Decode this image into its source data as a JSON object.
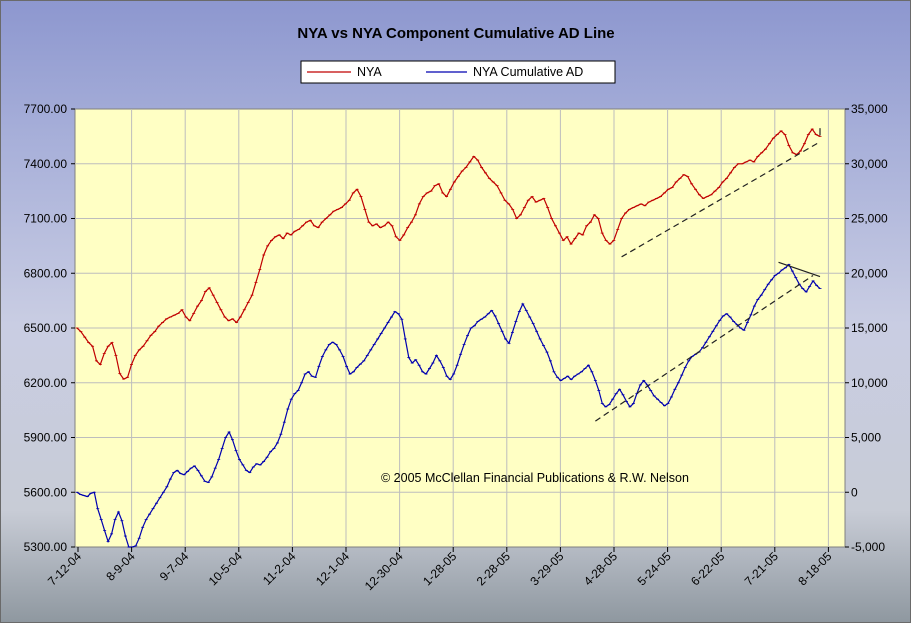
{
  "chart_data": {
    "type": "line",
    "title": "NYA vs NYA Component Cumulative AD Line",
    "copyright": "© 2005 McClellan Financial Publications & R.W. Nelson",
    "x_tick_labels": [
      "7-12-04",
      "8-9-04",
      "9-7-04",
      "10-5-04",
      "11-2-04",
      "12-1-04",
      "12-30-04",
      "1-28-05",
      "2-28-05",
      "3-29-05",
      "4-28-05",
      "5-24-05",
      "6-22-05",
      "7-21-05",
      "8-18-05"
    ],
    "y_left": {
      "ylim": [
        5300,
        7700
      ],
      "tick_labels": [
        "7700.00",
        "7400.00",
        "7100.00",
        "6800.00",
        "6500.00",
        "6200.00",
        "5900.00",
        "5600.00",
        "5300.00"
      ]
    },
    "y_right": {
      "ylim": [
        -5000,
        35000
      ],
      "tick_labels": [
        "35,000",
        "30,000",
        "25,000",
        "20,000",
        "15,000",
        "10,000",
        "5,000",
        "0",
        "-5,000"
      ]
    },
    "legend_position": "top-center",
    "series": [
      {
        "name": "NYA",
        "axis": "left",
        "color": "#c00000",
        "values": [
          6500,
          6480,
          6450,
          6420,
          6400,
          6320,
          6300,
          6360,
          6400,
          6420,
          6350,
          6250,
          6220,
          6230,
          6300,
          6350,
          6380,
          6400,
          6430,
          6460,
          6480,
          6510,
          6530,
          6550,
          6560,
          6570,
          6580,
          6600,
          6560,
          6540,
          6580,
          6620,
          6650,
          6700,
          6720,
          6680,
          6640,
          6600,
          6560,
          6540,
          6550,
          6530,
          6560,
          6600,
          6640,
          6680,
          6750,
          6820,
          6900,
          6950,
          6980,
          7000,
          7010,
          6990,
          7020,
          7010,
          7030,
          7040,
          7060,
          7080,
          7090,
          7060,
          7050,
          7080,
          7100,
          7120,
          7140,
          7150,
          7160,
          7180,
          7200,
          7240,
          7260,
          7220,
          7150,
          7080,
          7060,
          7070,
          7050,
          7060,
          7080,
          7060,
          7000,
          6980,
          7010,
          7050,
          7080,
          7120,
          7180,
          7220,
          7240,
          7250,
          7280,
          7290,
          7240,
          7220,
          7260,
          7300,
          7330,
          7360,
          7380,
          7410,
          7440,
          7420,
          7380,
          7350,
          7320,
          7300,
          7280,
          7240,
          7200,
          7180,
          7150,
          7100,
          7120,
          7160,
          7200,
          7220,
          7190,
          7200,
          7210,
          7160,
          7100,
          7060,
          7020,
          6980,
          7000,
          6960,
          6990,
          7020,
          7010,
          7060,
          7080,
          7120,
          7100,
          7020,
          6980,
          6960,
          6980,
          7040,
          7100,
          7130,
          7150,
          7160,
          7170,
          7180,
          7170,
          7190,
          7200,
          7210,
          7220,
          7240,
          7260,
          7270,
          7300,
          7320,
          7340,
          7330,
          7290,
          7260,
          7230,
          7210,
          7220,
          7230,
          7250,
          7270,
          7300,
          7320,
          7350,
          7380,
          7400,
          7400,
          7410,
          7420,
          7410,
          7440,
          7460,
          7480,
          7510,
          7540,
          7560,
          7580,
          7560,
          7500,
          7460,
          7450,
          7470,
          7510,
          7560,
          7590,
          7560,
          7550
        ]
      },
      {
        "name": "NYA Cumulative AD",
        "axis": "right",
        "color": "#0000b0",
        "values": [
          0,
          -200,
          -300,
          -400,
          -100,
          0,
          -1500,
          -2500,
          -3500,
          -4500,
          -3800,
          -2500,
          -1800,
          -2600,
          -4000,
          -5000,
          -5400,
          -4900,
          -4200,
          -3200,
          -2500,
          -2000,
          -1500,
          -1000,
          -500,
          0,
          500,
          1200,
          1800,
          2000,
          1700,
          1600,
          1900,
          2200,
          2400,
          2000,
          1500,
          1000,
          900,
          1400,
          2200,
          3000,
          4000,
          5000,
          5500,
          4800,
          3800,
          3000,
          2500,
          2000,
          1800,
          2300,
          2600,
          2500,
          2800,
          3200,
          3700,
          4000,
          4500,
          5300,
          6400,
          7600,
          8500,
          9000,
          9300,
          10000,
          10800,
          11000,
          10600,
          10500,
          11500,
          12400,
          13000,
          13500,
          13700,
          13500,
          13000,
          12400,
          11500,
          10800,
          11000,
          11400,
          11700,
          12000,
          12500,
          13000,
          13500,
          14000,
          14500,
          15000,
          15500,
          16000,
          16500,
          16300,
          15800,
          14000,
          12300,
          11800,
          12100,
          11600,
          11000,
          10800,
          11300,
          11800,
          12500,
          12000,
          11400,
          10600,
          10300,
          10800,
          11600,
          12600,
          13500,
          14300,
          15000,
          15200,
          15600,
          15800,
          16000,
          16300,
          16600,
          16100,
          15400,
          14700,
          14000,
          13600,
          14600,
          15600,
          16500,
          17200,
          16600,
          16000,
          15400,
          14700,
          14000,
          13400,
          12800,
          12000,
          11000,
          10500,
          10200,
          10400,
          10600,
          10300,
          10600,
          10800,
          11000,
          11300,
          11600,
          11000,
          10200,
          9300,
          8100,
          7800,
          8000,
          8500,
          9000,
          9400,
          8900,
          8300,
          7800,
          8100,
          9000,
          9800,
          10200,
          9800,
          9300,
          8800,
          8500,
          8200,
          7900,
          8100,
          8700,
          9400,
          10000,
          10700,
          11400,
          12000,
          12400,
          12600,
          12800,
          13200,
          13700,
          14200,
          14700,
          15200,
          15700,
          16100,
          16300,
          16000,
          15600,
          15300,
          15000,
          14800,
          15500,
          16200,
          17000,
          17600,
          18000,
          18500,
          19000,
          19400,
          19800,
          20000,
          20300,
          20500,
          20800,
          20200,
          19600,
          19000,
          18600,
          18300,
          18800,
          19300,
          18900,
          18600
        ]
      }
    ],
    "annotations": "dashed support/trend lines"
  }
}
